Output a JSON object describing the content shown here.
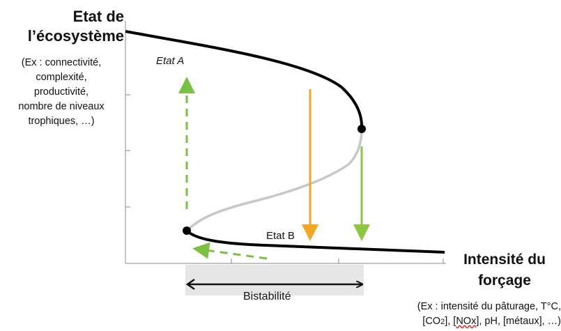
{
  "y_axis": {
    "title_line1": "Etat de",
    "title_line2": "l’écosystème",
    "note_lines": [
      "(Ex : connectivité,",
      "complexité,",
      "productivité,",
      "nombre de niveaux",
      "trophiques, …)"
    ]
  },
  "x_axis": {
    "title_line1": "Intensité du",
    "title_line2": "forçage",
    "note_line1": "(Ex : intensité du pâturage, T°C,",
    "note_line2_part1": "[CO",
    "note_line2_sub": "2",
    "note_line2_part2": "], [",
    "note_line2_nox": "NOx",
    "note_line2_part3": "], pH, [métaux], …)"
  },
  "labels": {
    "state_a": "Etat A",
    "state_b": "Etat B",
    "bistability": "Bistabilité"
  },
  "colors": {
    "stable_branch": "#000000",
    "unstable_branch": "#c8c8c8",
    "collapse_arrow_orange": "#f5a623",
    "green_arrow": "#8dc63f",
    "recovery_dashed": "#7ac142",
    "bistability_band": "#e6e6e6"
  }
}
